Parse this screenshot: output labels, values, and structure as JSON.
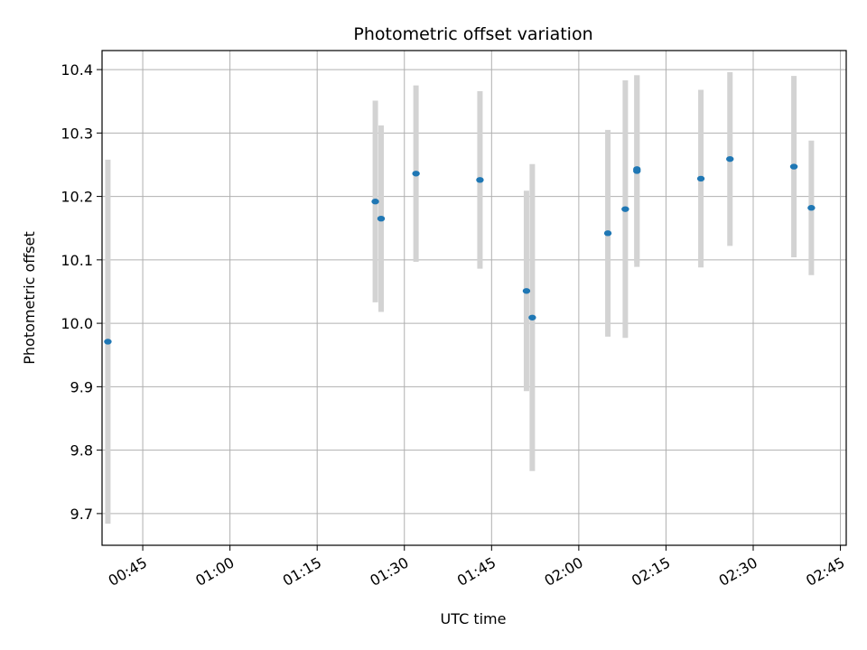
{
  "chart_data": {
    "type": "scatter",
    "title": "Photometric offset variation",
    "xlabel": "UTC time",
    "ylabel": "Photometric offset",
    "x_ticks": [
      "00:45",
      "01:00",
      "01:15",
      "01:30",
      "01:45",
      "02:00",
      "02:15",
      "02:30",
      "02:45"
    ],
    "y_ticks": [
      "9.7",
      "9.8",
      "9.9",
      "10.0",
      "10.1",
      "10.2",
      "10.3",
      "10.4"
    ],
    "xlim": [
      "00:38",
      "02:46"
    ],
    "ylim": [
      9.65,
      10.43
    ],
    "grid": true,
    "colors": {
      "point": "#1f77b4",
      "errorbar": "#d3d3d3",
      "grid": "#b0b0b0"
    },
    "points": [
      {
        "t": "00:39",
        "y": 9.971,
        "err": 0.287
      },
      {
        "t": "01:25",
        "y": 10.192,
        "err": 0.159
      },
      {
        "t": "01:26",
        "y": 10.165,
        "err": 0.147
      },
      {
        "t": "01:32",
        "y": 10.236,
        "err": 0.139
      },
      {
        "t": "01:43",
        "y": 10.226,
        "err": 0.14
      },
      {
        "t": "01:51",
        "y": 10.051,
        "err": 0.158
      },
      {
        "t": "01:52",
        "y": 10.009,
        "err": 0.242
      },
      {
        "t": "02:05",
        "y": 10.142,
        "err": 0.163
      },
      {
        "t": "02:08",
        "y": 10.18,
        "err": 0.203
      },
      {
        "t": "02:10",
        "y": 10.24,
        "err": 0.151
      },
      {
        "t": "02:10",
        "y": 10.243,
        "err": 0.148
      },
      {
        "t": "02:21",
        "y": 10.228,
        "err": 0.14
      },
      {
        "t": "02:26",
        "y": 10.259,
        "err": 0.137
      },
      {
        "t": "02:37",
        "y": 10.247,
        "err": 0.143
      },
      {
        "t": "02:40",
        "y": 10.182,
        "err": 0.106
      }
    ]
  }
}
